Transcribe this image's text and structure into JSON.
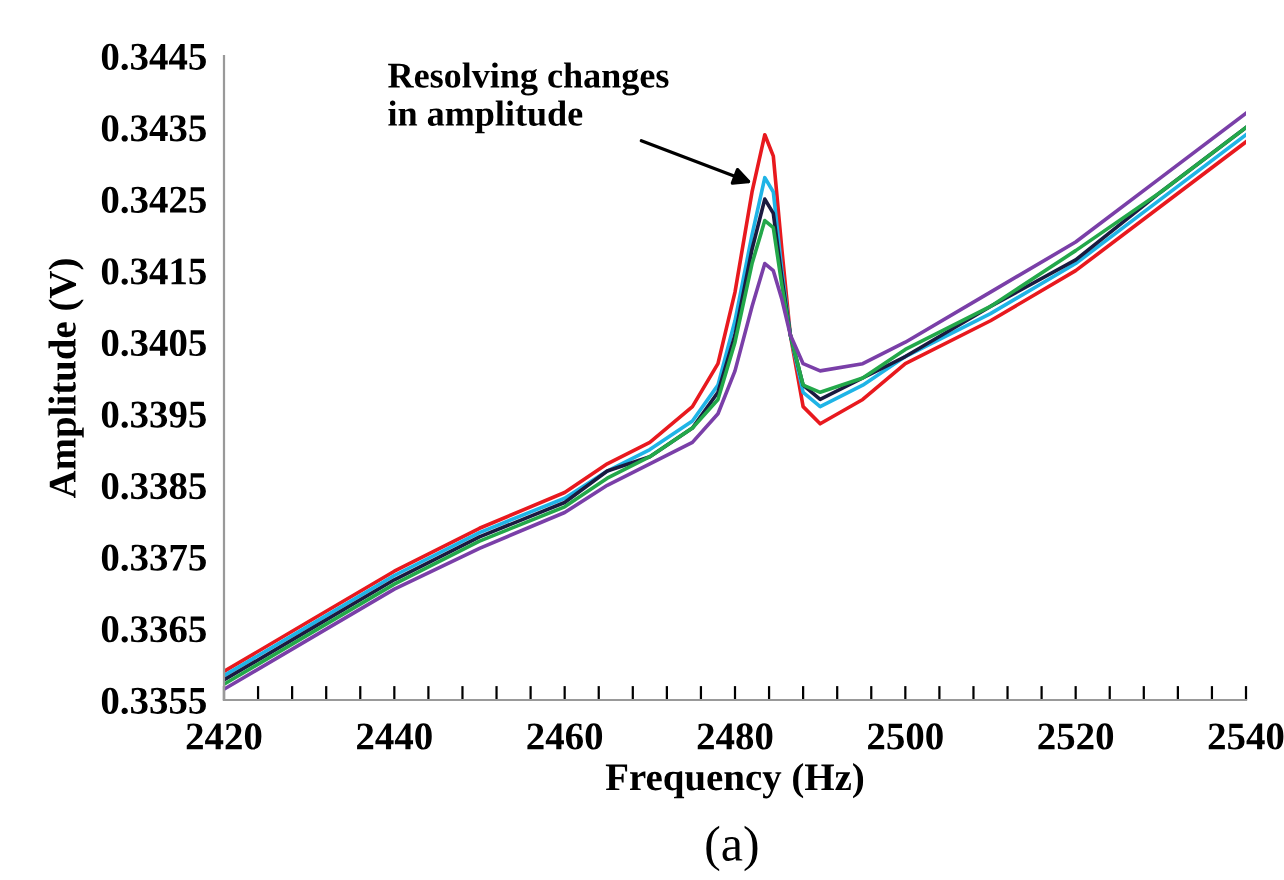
{
  "chart_data": {
    "type": "line",
    "xlabel": "Frequency (Hz)",
    "ylabel": "Amplitude (V)",
    "x": [
      2420,
      2430,
      2440,
      2450,
      2460,
      2465,
      2470,
      2475,
      2478,
      2480,
      2482,
      2483.5,
      2484.5,
      2485.5,
      2486.5,
      2488,
      2490,
      2495,
      2500,
      2510,
      2520,
      2530,
      2540
    ],
    "series": [
      {
        "color": "#e8191e",
        "values": [
          0.3359,
          0.3366,
          0.3373,
          0.3379,
          0.3384,
          0.3388,
          0.3391,
          0.3396,
          0.3402,
          0.3412,
          0.3426,
          0.3434,
          0.3431,
          0.3418,
          0.3406,
          0.3396,
          0.33936,
          0.3397,
          0.3402,
          0.3408,
          0.3415,
          0.3424,
          0.3433
        ]
      },
      {
        "color": "#1fb4e6",
        "values": [
          0.33584,
          0.33654,
          0.33724,
          0.33784,
          0.33832,
          0.3387,
          0.339,
          0.3394,
          0.3399,
          0.3408,
          0.342,
          0.3428,
          0.3426,
          0.3415,
          0.3406,
          0.3398,
          0.3396,
          0.3399,
          0.3403,
          0.3409,
          0.3416,
          0.3425,
          0.3434
        ]
      },
      {
        "color": "#1a1a40",
        "values": [
          0.33578,
          0.33648,
          0.33718,
          0.33778,
          0.33826,
          0.3387,
          0.3389,
          0.3393,
          0.3398,
          0.3406,
          0.3418,
          0.3425,
          0.3423,
          0.3414,
          0.3406,
          0.3399,
          0.3397,
          0.34,
          0.3403,
          0.341,
          0.34165,
          0.3426,
          0.3435
        ]
      },
      {
        "color": "#23a84a",
        "values": [
          0.33572,
          0.33642,
          0.33712,
          0.33772,
          0.3382,
          0.3386,
          0.3389,
          0.3393,
          0.3397,
          0.3405,
          0.3416,
          0.3422,
          0.3421,
          0.3413,
          0.3406,
          0.3399,
          0.3398,
          0.34,
          0.3404,
          0.341,
          0.34178,
          0.3426,
          0.3435
        ]
      },
      {
        "color": "#7a3fa8",
        "values": [
          0.33565,
          0.33635,
          0.33705,
          0.33762,
          0.33812,
          0.3385,
          0.3388,
          0.3391,
          0.3395,
          0.3401,
          0.341,
          0.3416,
          0.3415,
          0.3411,
          0.3406,
          0.3402,
          0.3401,
          0.3402,
          0.3405,
          0.3412,
          0.3419,
          0.3428,
          0.3437
        ]
      }
    ],
    "xlim": [
      2420,
      2540
    ],
    "xticks": [
      2420,
      {
        "value": 2424,
        "label": null
      },
      {
        "value": 2428,
        "label": null
      },
      {
        "value": 2432,
        "label": null
      },
      {
        "value": 2436,
        "label": null
      },
      2440,
      {
        "value": 2444,
        "label": null
      },
      {
        "value": 2448,
        "label": null
      },
      {
        "value": 2452,
        "label": null
      },
      {
        "value": 2456,
        "label": null
      },
      2460,
      {
        "value": 2464,
        "label": null
      },
      {
        "value": 2468,
        "label": null
      },
      {
        "value": 2472,
        "label": null
      },
      {
        "value": 2476,
        "label": null
      },
      2480,
      {
        "value": 2484,
        "label": null
      },
      {
        "value": 2488,
        "label": null
      },
      {
        "value": 2492,
        "label": null
      },
      {
        "value": 2496,
        "label": null
      },
      2500,
      {
        "value": 2504,
        "label": null
      },
      {
        "value": 2508,
        "label": null
      },
      {
        "value": 2512,
        "label": null
      },
      {
        "value": 2516,
        "label": null
      },
      2520,
      {
        "value": 2524,
        "label": null
      },
      {
        "value": 2528,
        "label": null
      },
      {
        "value": 2532,
        "label": null
      },
      {
        "value": 2536,
        "label": null
      },
      2540
    ],
    "ylim": [
      0.3355,
      0.3445
    ],
    "yticks": [
      0.3355,
      0.3365,
      0.3375,
      0.3385,
      0.3395,
      0.3405,
      0.3415,
      0.3425,
      0.3435,
      0.3445
    ],
    "grid": false,
    "legend": false,
    "marker": "none",
    "line_style": "solid",
    "annotations": [
      {
        "text": "Resolving changes\nin amplitude",
        "x": 2482.6,
        "y": 0.3427
      },
      "(a)"
    ]
  }
}
